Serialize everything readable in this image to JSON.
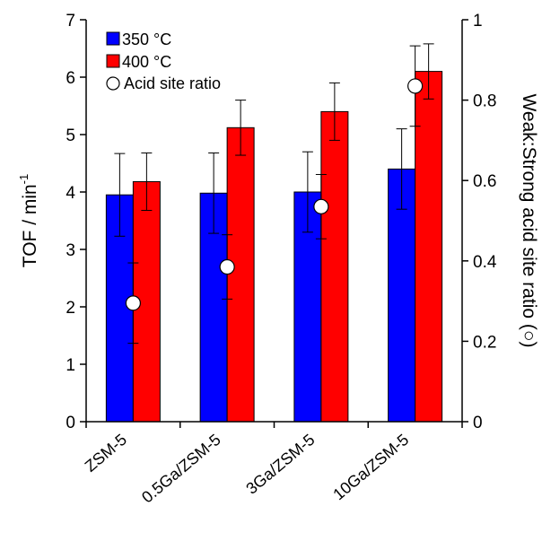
{
  "chart_data": {
    "type": "bar",
    "categories": [
      "ZSM-5",
      "0.5Ga/ZSM-5",
      "3Ga/ZSM-5",
      "10Ga/ZSM-5"
    ],
    "series": [
      {
        "name": "350 °C",
        "color": "#0000ff",
        "values": [
          3.95,
          3.98,
          4.0,
          4.4
        ],
        "errors": [
          0.72,
          0.7,
          0.7,
          0.7
        ]
      },
      {
        "name": "400 °C",
        "color": "#ff0000",
        "values": [
          4.18,
          5.12,
          5.4,
          6.1
        ],
        "errors": [
          0.5,
          0.48,
          0.5,
          0.48
        ]
      }
    ],
    "scatter": {
      "name": "Acid site ratio",
      "axis": "right",
      "values": [
        0.295,
        0.385,
        0.535,
        0.835
      ],
      "errors": [
        0.1,
        0.08,
        0.08,
        0.1
      ]
    },
    "ylabel": "TOF / min",
    "ylabel_sup": "-1",
    "y2label": "Weak:Strong acid site ratio (○)",
    "ylim": [
      0,
      7
    ],
    "y2lim": [
      0,
      1
    ],
    "yticks": [
      "0",
      "1",
      "2",
      "3",
      "4",
      "5",
      "6",
      "7"
    ],
    "y2ticks": [
      "0",
      "0.2",
      "0.4",
      "0.6",
      "0.8",
      "1"
    ],
    "legend_position": "top-left",
    "grid": false
  }
}
